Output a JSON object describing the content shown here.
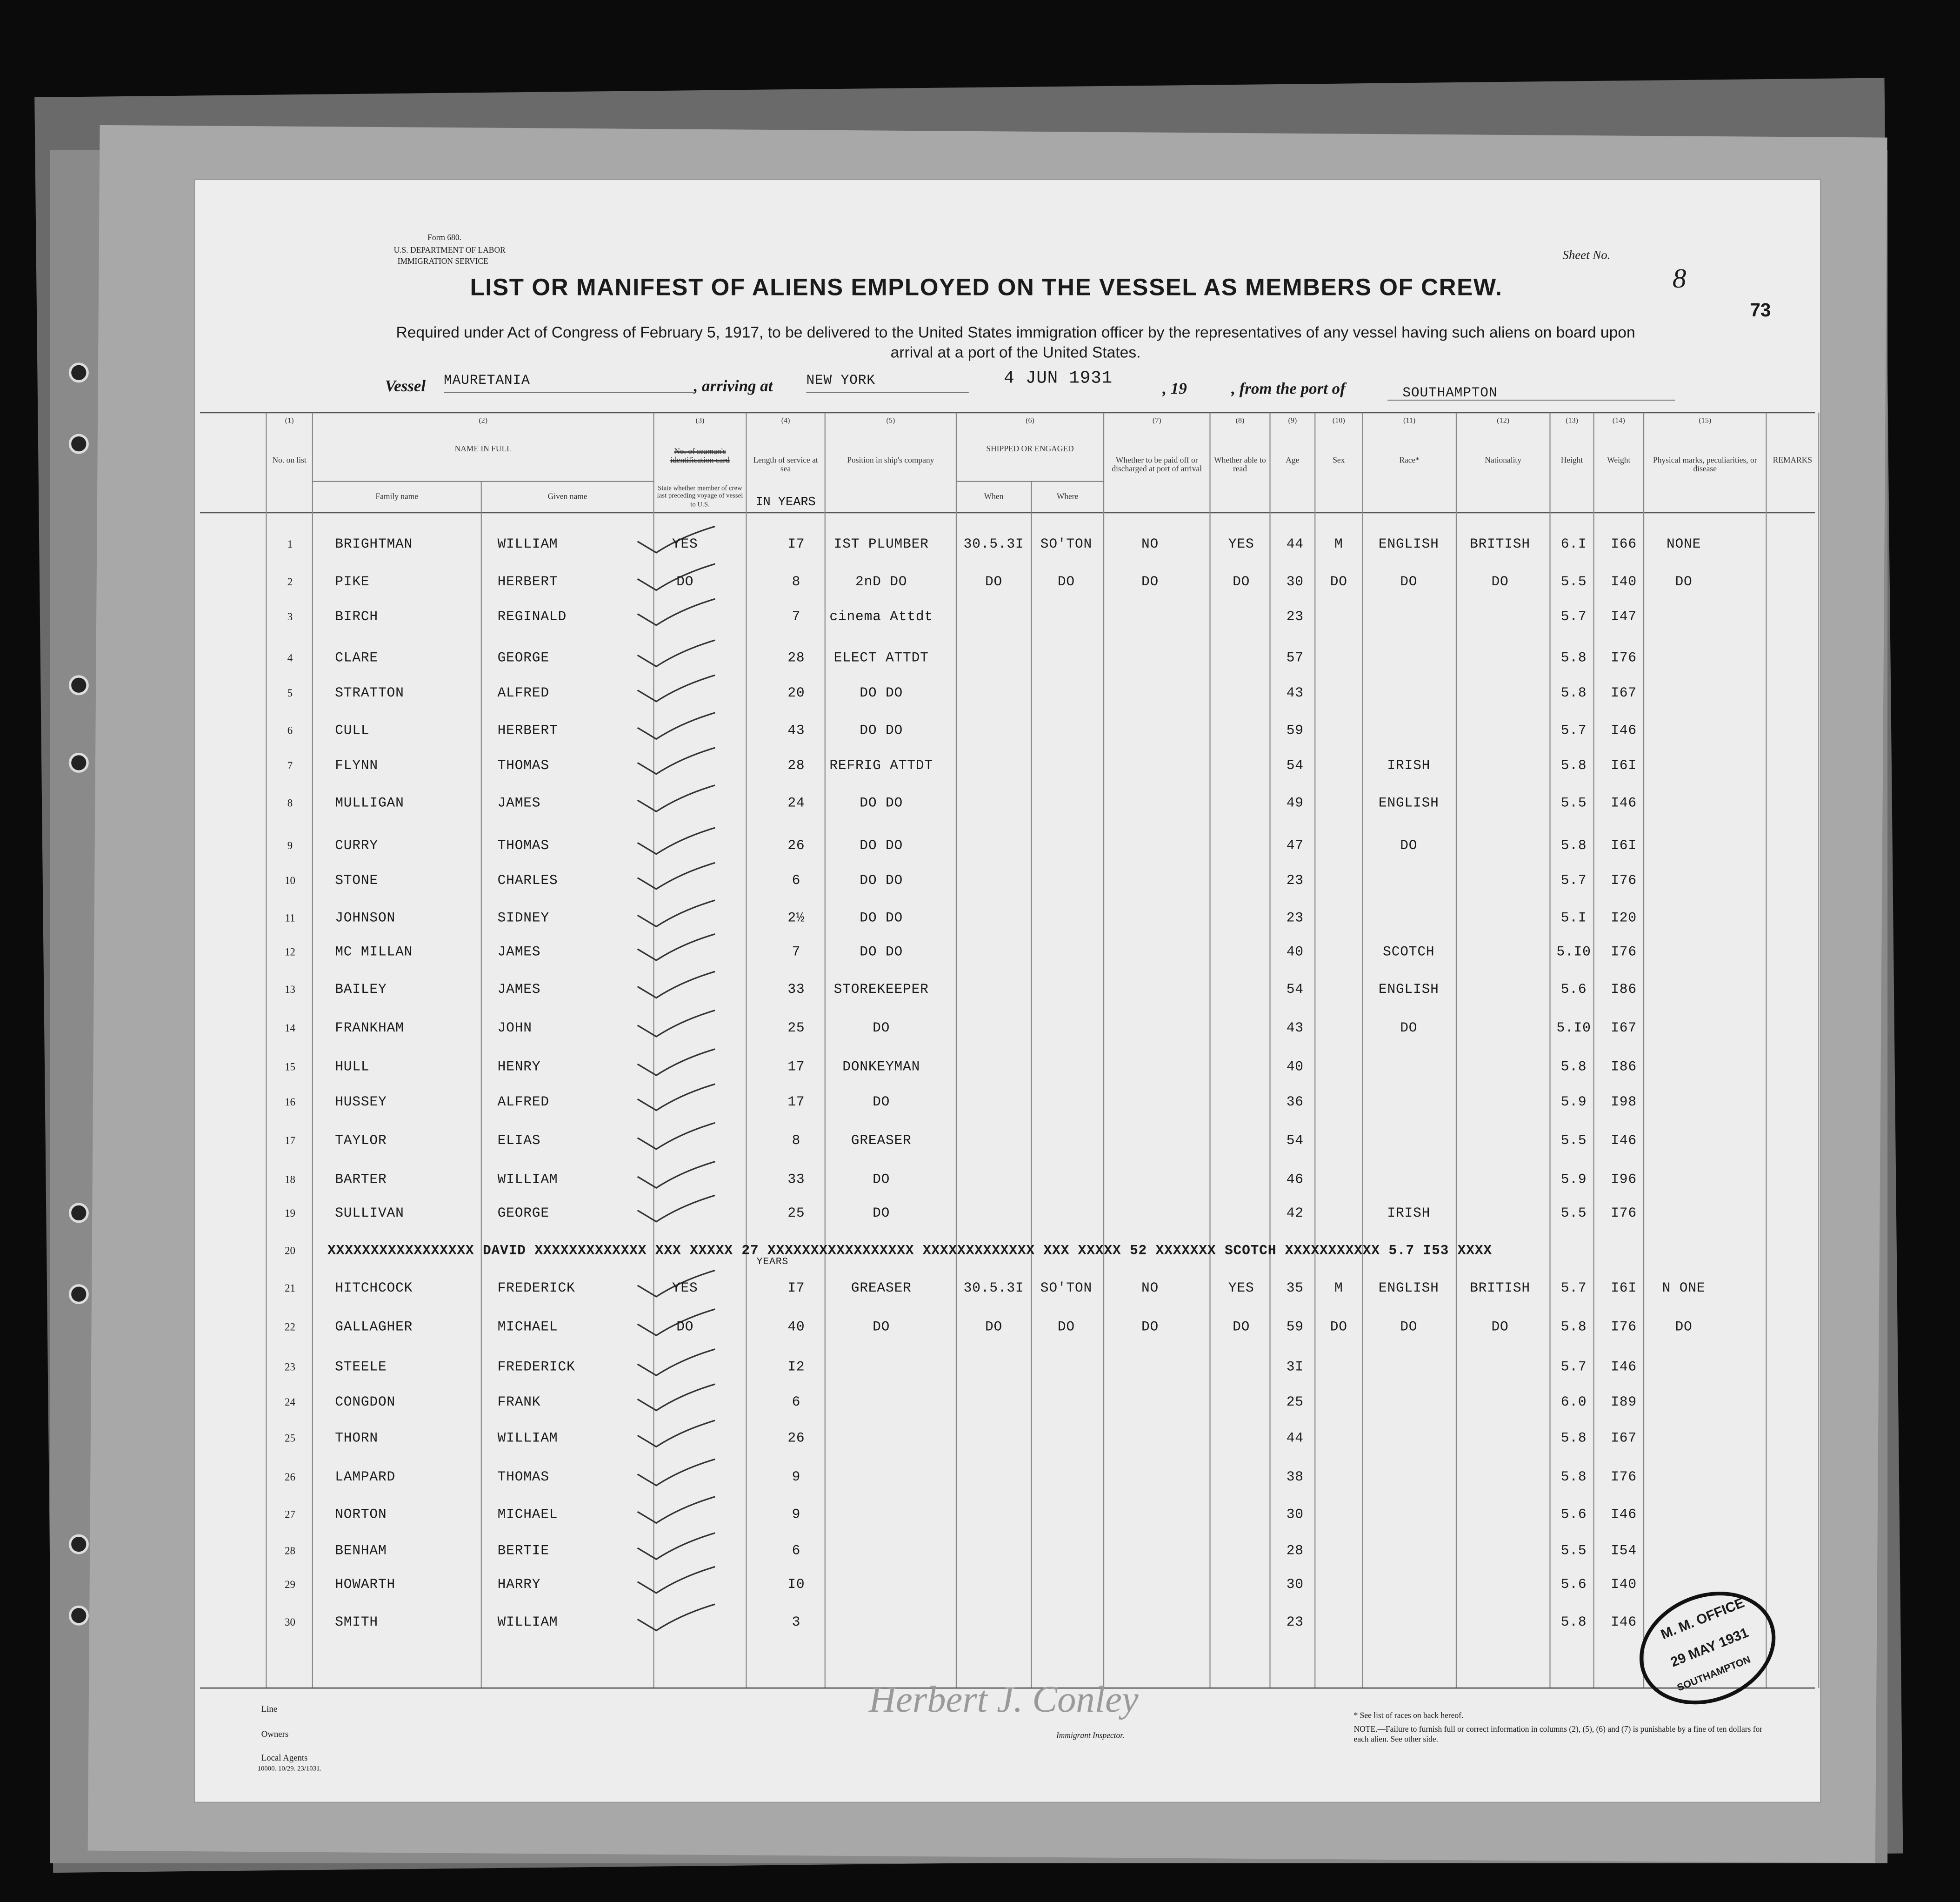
{
  "form": {
    "number": "Form 680.",
    "department": "U.S. DEPARTMENT OF LABOR",
    "service": "IMMIGRATION SERVICE"
  },
  "sheet": {
    "label": "Sheet No.",
    "number": "8"
  },
  "page_number": "73",
  "title": "LIST OR MANIFEST OF ALIENS EMPLOYED ON THE VESSEL AS MEMBERS OF CREW.",
  "subtitle": "Required under Act of Congress of February 5, 1917, to be delivered to the United States immigration officer by the representatives of any vessel having such aliens on board upon arrival at a port of the United States.",
  "vessel_line": {
    "vessel_label": "Vessel",
    "vessel": "MAURETANIA",
    "arriving_label": ", arriving at",
    "port": "NEW YORK",
    "date": "4 JUN 1931",
    "year_label": ", 19",
    "from_label": ", from the port of",
    "from_port": "SOUTHAMPTON"
  },
  "columns": [
    {
      "number": "(1)",
      "label": "No. on list"
    },
    {
      "number": "(2)",
      "label": "NAME IN FULL",
      "sub": [
        "Family name",
        "Given name"
      ]
    },
    {
      "number": "(3)",
      "label": "No. of seaman's identification card",
      "note": "State whether member of crew last preceding voyage of vessel to U.S."
    },
    {
      "number": "(4)",
      "label": "Length of service at sea",
      "sub": [
        "IN YEARS"
      ]
    },
    {
      "number": "(5)",
      "label": "Position in ship's company"
    },
    {
      "number": "(6)",
      "label": "SHIPPED OR ENGAGED",
      "sub": [
        "When",
        "Where"
      ]
    },
    {
      "number": "(7)",
      "label": "Whether to be paid off or discharged at port of arrival"
    },
    {
      "number": "(8)",
      "label": "Whether able to read"
    },
    {
      "number": "(9)",
      "label": "Age"
    },
    {
      "number": "(10)",
      "label": "Sex"
    },
    {
      "number": "(11)",
      "label": "Race*"
    },
    {
      "number": "(12)",
      "label": "Nationality"
    },
    {
      "number": "(13)",
      "label": "Height"
    },
    {
      "number": "(14)",
      "label": "Weight"
    },
    {
      "number": "(15)",
      "label": "Physical marks, peculiarities, or disease"
    },
    {
      "label": "REMARKS"
    }
  ],
  "rows": [
    {
      "no": "1",
      "family": "BRIGHTMAN",
      "given": "WILLIAM",
      "card": "YES",
      "service": "I7",
      "position": "IST PLUMBER",
      "when": "30.5.3I",
      "where": "SO'TON",
      "paid": "NO",
      "read": "YES",
      "age": "44",
      "sex": "M",
      "race": "ENGLISH",
      "nationality": "BRITISH",
      "height": "6.I",
      "weight": "I66",
      "marks": "NONE"
    },
    {
      "no": "2",
      "family": "PIKE",
      "given": "HERBERT",
      "card": "DO",
      "service": "8",
      "position": "2nD DO",
      "when": "DO",
      "where": "DO",
      "paid": "DO",
      "read": "DO",
      "age": "30",
      "sex": "DO",
      "race": "DO",
      "nationality": "DO",
      "height": "5.5",
      "weight": "I40",
      "marks": "DO"
    },
    {
      "no": "3",
      "family": "BIRCH",
      "given": "REGINALD",
      "service": "7",
      "position": "cinema Attdt",
      "age": "23",
      "height": "5.7",
      "weight": "I47"
    },
    {
      "no": "4",
      "family": "CLARE",
      "given": "GEORGE",
      "service": "28",
      "position": "ELECT ATTDT",
      "age": "57",
      "height": "5.8",
      "weight": "I76"
    },
    {
      "no": "5",
      "family": "STRATTON",
      "given": "ALFRED",
      "service": "20",
      "position": "DO DO",
      "age": "43",
      "height": "5.8",
      "weight": "I67"
    },
    {
      "no": "6",
      "family": "CULL",
      "given": "HERBERT",
      "service": "43",
      "position": "DO DO",
      "age": "59",
      "height": "5.7",
      "weight": "I46"
    },
    {
      "no": "7",
      "family": "FLYNN",
      "given": "THOMAS",
      "service": "28",
      "position": "REFRIG ATTDT",
      "age": "54",
      "race": "IRISH",
      "height": "5.8",
      "weight": "I6I"
    },
    {
      "no": "8",
      "family": "MULLIGAN",
      "given": "JAMES",
      "service": "24",
      "position": "DO DO",
      "age": "49",
      "race": "ENGLISH",
      "height": "5.5",
      "weight": "I46"
    },
    {
      "no": "9",
      "family": "CURRY",
      "given": "THOMAS",
      "service": "26",
      "position": "DO DO",
      "age": "47",
      "race": "DO",
      "height": "5.8",
      "weight": "I6I"
    },
    {
      "no": "10",
      "family": "STONE",
      "given": "CHARLES",
      "service": "6",
      "position": "DO DO",
      "age": "23",
      "height": "5.7",
      "weight": "I76"
    },
    {
      "no": "11",
      "family": "JOHNSON",
      "given": "SIDNEY",
      "service": "2½",
      "position": "DO DO",
      "age": "23",
      "height": "5.I",
      "weight": "I20"
    },
    {
      "no": "12",
      "family": "MC MILLAN",
      "given": "JAMES",
      "service": "7",
      "position": "DO DO",
      "age": "40",
      "race": "SCOTCH",
      "height": "5.I0",
      "weight": "I76"
    },
    {
      "no": "13",
      "family": "BAILEY",
      "given": "JAMES",
      "service": "33",
      "position": "STOREKEEPER",
      "age": "54",
      "race": "ENGLISH",
      "height": "5.6",
      "weight": "I86"
    },
    {
      "no": "14",
      "family": "FRANKHAM",
      "given": "JOHN",
      "service": "25",
      "position": "DO",
      "age": "43",
      "race": "DO",
      "height": "5.I0",
      "weight": "I67"
    },
    {
      "no": "15",
      "family": "HULL",
      "given": "HENRY",
      "service": "17",
      "position": "DONKEYMAN",
      "age": "40",
      "height": "5.8",
      "weight": "I86"
    },
    {
      "no": "16",
      "family": "HUSSEY",
      "given": "ALFRED",
      "service": "17",
      "position": "DO",
      "age": "36",
      "height": "5.9",
      "weight": "I98"
    },
    {
      "no": "17",
      "family": "TAYLOR",
      "given": "ELIAS",
      "service": "8",
      "position": "GREASER",
      "age": "54",
      "height": "5.5",
      "weight": "I46"
    },
    {
      "no": "18",
      "family": "BARTER",
      "given": "WILLIAM",
      "service": "33",
      "position": "DO",
      "age": "46",
      "height": "5.9",
      "weight": "I96"
    },
    {
      "no": "19",
      "family": "SULLIVAN",
      "given": "GEORGE",
      "service": "25",
      "position": "DO",
      "age": "42",
      "race": "IRISH",
      "height": "5.5",
      "weight": "I76"
    },
    {
      "no": "20",
      "struck": "XXXXXXXXXXXXXXXXX DAVID XXXXXXXXXXXXX XXX XXXXX 27 XXXXXXXXXXXXXXXXX XXXXXXXXXXXXX XXX XXXXX 52 XXXXXXX SCOTCH XXXXXXXXXXX 5.7 I53 XXXX",
      "service_note": "YEARS"
    },
    {
      "no": "21",
      "family": "HITCHCOCK",
      "given": "FREDERICK",
      "card": "YES",
      "service": "I7",
      "position": "GREASER",
      "when": "30.5.3I",
      "where": "SO'TON",
      "paid": "NO",
      "read": "YES",
      "age": "35",
      "sex": "M",
      "race": "ENGLISH",
      "nationality": "BRITISH",
      "height": "5.7",
      "weight": "I6I",
      "marks": "N ONE"
    },
    {
      "no": "22",
      "family": "GALLAGHER",
      "given": "MICHAEL",
      "card": "DO",
      "service": "40",
      "position": "DO",
      "when": "DO",
      "where": "DO",
      "paid": "DO",
      "read": "DO",
      "age": "59",
      "sex": "DO",
      "race": "DO",
      "nationality": "DO",
      "height": "5.8",
      "weight": "I76",
      "marks": "DO"
    },
    {
      "no": "23",
      "family": "STEELE",
      "given": "FREDERICK",
      "service": "I2",
      "age": "3I",
      "height": "5.7",
      "weight": "I46"
    },
    {
      "no": "24",
      "family": "CONGDON",
      "given": "FRANK",
      "service": "6",
      "age": "25",
      "height": "6.0",
      "weight": "I89"
    },
    {
      "no": "25",
      "family": "THORN",
      "given": "WILLIAM",
      "service": "26",
      "age": "44",
      "height": "5.8",
      "weight": "I67"
    },
    {
      "no": "26",
      "family": "LAMPARD",
      "given": "THOMAS",
      "service": "9",
      "age": "38",
      "height": "5.8",
      "weight": "I76"
    },
    {
      "no": "27",
      "family": "NORTON",
      "given": "MICHAEL",
      "service": "9",
      "age": "30",
      "height": "5.6",
      "weight": "I46"
    },
    {
      "no": "28",
      "family": "BENHAM",
      "given": "BERTIE",
      "service": "6",
      "age": "28",
      "height": "5.5",
      "weight": "I54"
    },
    {
      "no": "29",
      "family": "HOWARTH",
      "given": "HARRY",
      "service": "I0",
      "age": "30",
      "height": "5.6",
      "weight": "I40"
    },
    {
      "no": "30",
      "family": "SMITH",
      "given": "WILLIAM",
      "service": "3",
      "age": "23",
      "height": "5.8",
      "weight": "I46"
    }
  ],
  "footer": {
    "line_label": "Line",
    "owners_label": "Owners",
    "agents_label": "Local Agents",
    "print_code": "10000. 10/29. 23/1031.",
    "signature": "Herbert J. Conley",
    "inspector_label": "Immigrant Inspector.",
    "races_note": "* See list of races on back hereof.",
    "fine_note": "NOTE.—Failure to furnish full or correct information in columns (2), (5), (6) and (7) is punishable by a fine of ten dollars for each alien. See other side."
  },
  "stamp": {
    "office": "M. M. OFFICE",
    "date": "29 MAY 1931",
    "port": "SOUTHAMPTON"
  }
}
